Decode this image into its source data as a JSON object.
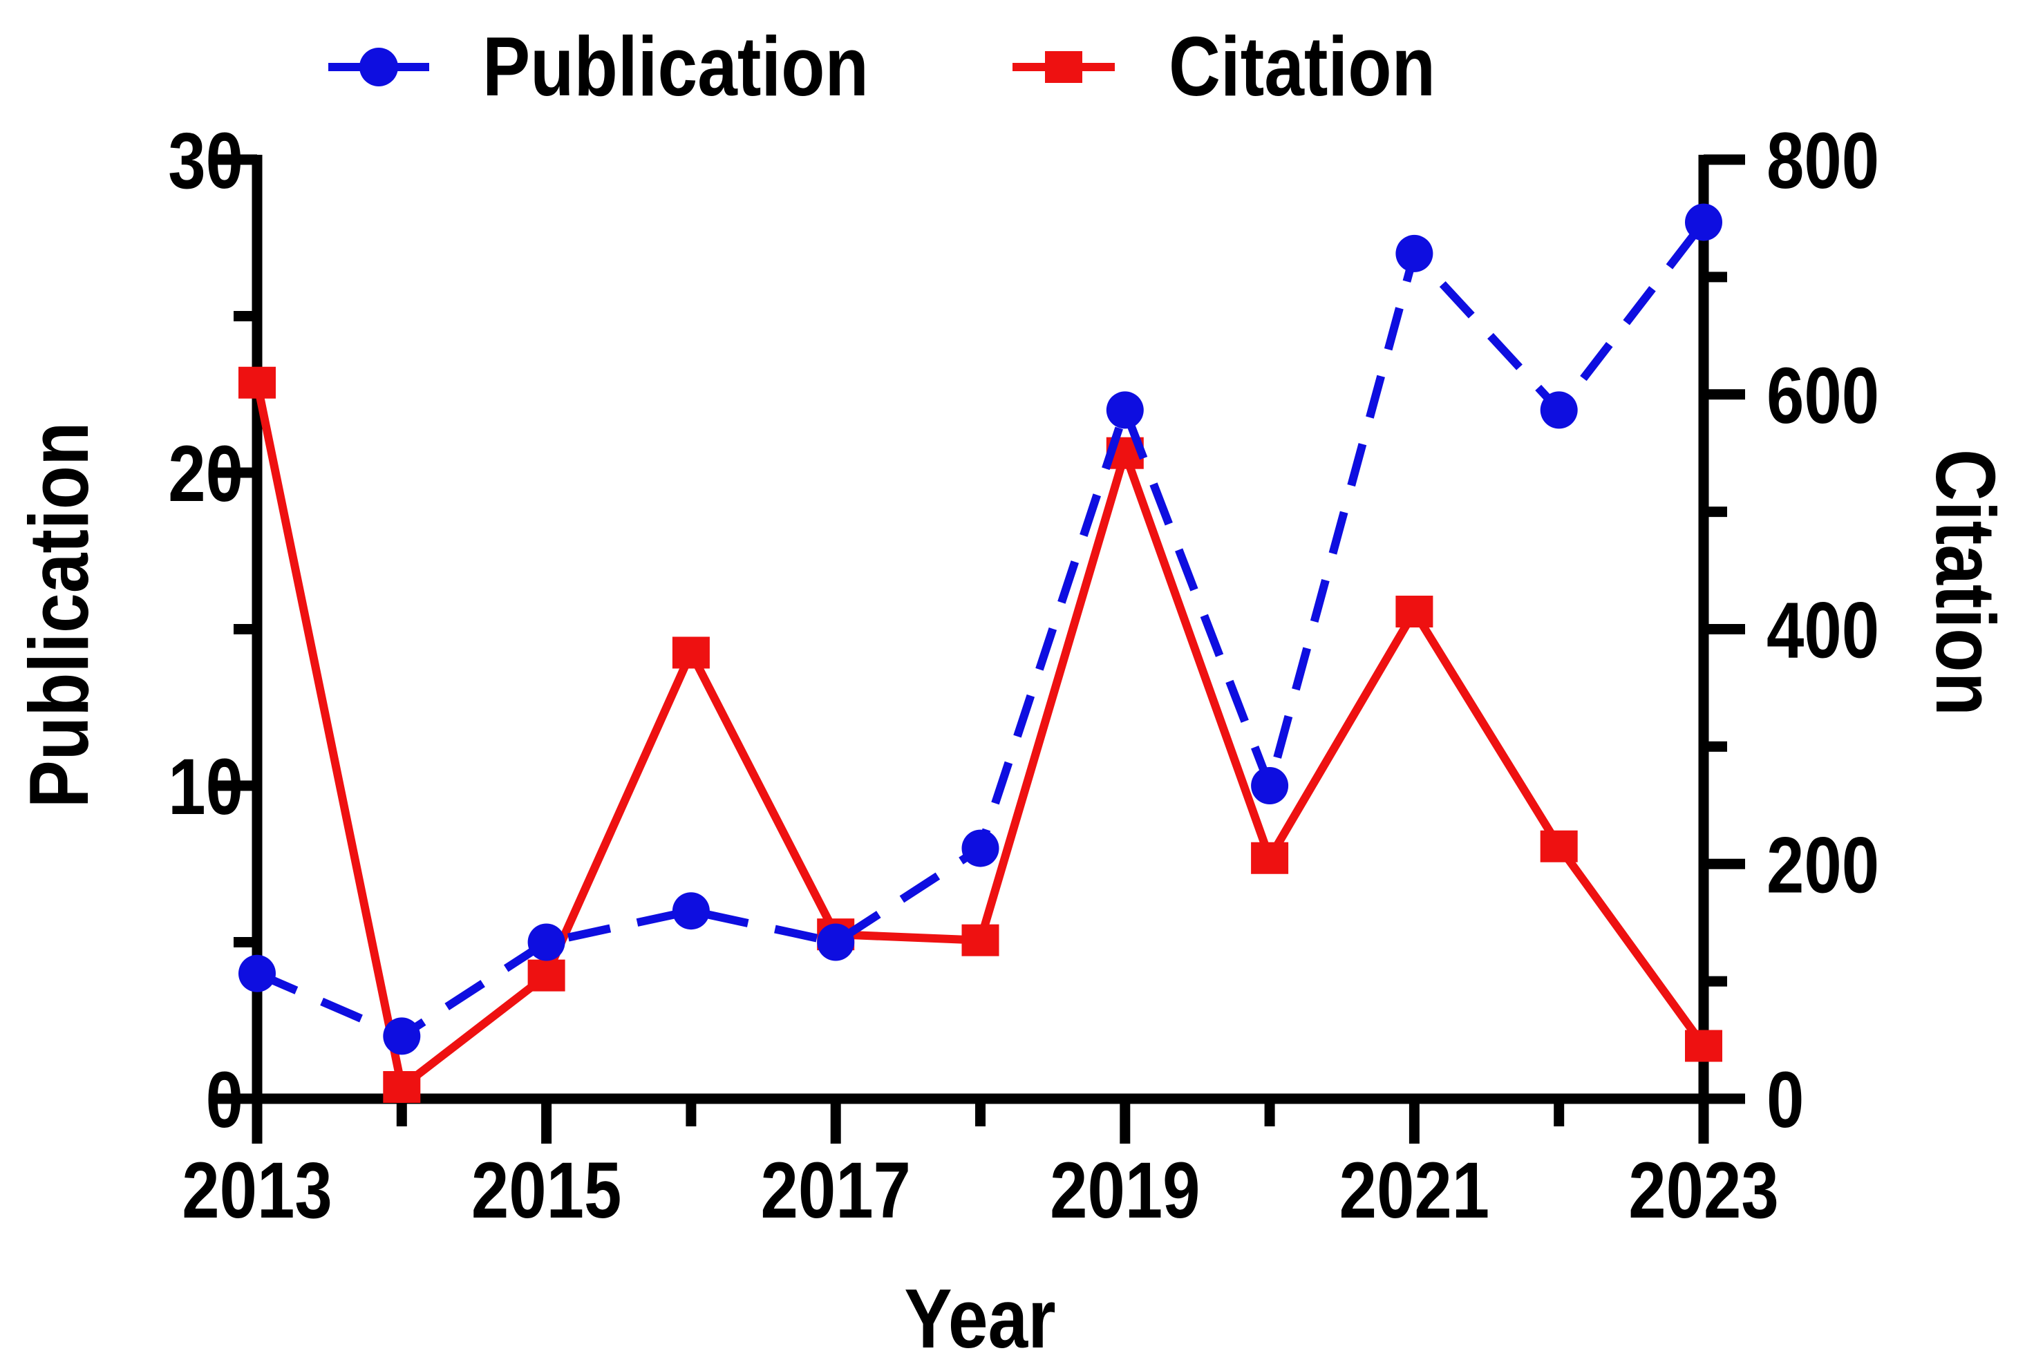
{
  "chart_data": {
    "type": "line",
    "title": "",
    "x": [
      2013,
      2014,
      2015,
      2016,
      2017,
      2018,
      2019,
      2020,
      2021,
      2022,
      2023
    ],
    "series": [
      {
        "name": "Publication",
        "axis": "left",
        "color": "#0E0EE0",
        "line_style": "dashed",
        "marker": "circle",
        "values": [
          4,
          2,
          5,
          6,
          5,
          8,
          22,
          10,
          27,
          22,
          28
        ]
      },
      {
        "name": "Citation",
        "axis": "right",
        "color": "#EE1111",
        "line_style": "solid",
        "marker": "square",
        "values": [
          610,
          10,
          105,
          380,
          140,
          135,
          550,
          205,
          415,
          215,
          45
        ]
      }
    ],
    "axes": {
      "x": {
        "label": "Year",
        "range": [
          2013,
          2023
        ],
        "major_ticks": [
          2013,
          2015,
          2017,
          2019,
          2021,
          2023
        ],
        "minor_ticks": [
          2014,
          2016,
          2018,
          2020,
          2022
        ]
      },
      "y_left": {
        "label": "Publication",
        "range": [
          0,
          30
        ],
        "major_ticks": [
          0,
          10,
          20,
          30
        ],
        "minor_ticks": [
          5,
          15,
          25
        ]
      },
      "y_right": {
        "label": "Citation",
        "range": [
          0,
          800
        ],
        "major_ticks": [
          0,
          200,
          400,
          600,
          800
        ],
        "minor_ticks": [
          100,
          300,
          500,
          700
        ]
      }
    },
    "grid": false,
    "legend_position": "top",
    "axis_color": "#000000",
    "background_color": "#FFFFFF"
  }
}
